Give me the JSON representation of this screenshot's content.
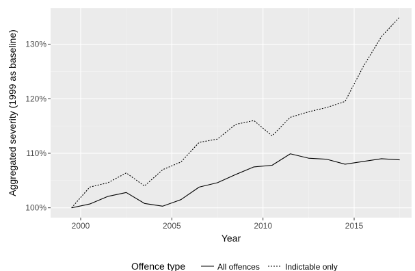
{
  "chart_data": {
    "type": "line",
    "xlabel": "Year",
    "ylabel": "Aggregated severity (1999 as baseline)",
    "x_ticks": [
      2000,
      2005,
      2010,
      2015
    ],
    "x_tick_labels": [
      "2000",
      "2005",
      "2010",
      "2015"
    ],
    "y_ticks": [
      100,
      110,
      120,
      130
    ],
    "y_tick_labels": [
      "100%",
      "110%",
      "120%",
      "130%"
    ],
    "xlim": [
      1998.35,
      2018.15
    ],
    "ylim": [
      98.2,
      136.6
    ],
    "grid": true,
    "legend": {
      "title": "Offence type",
      "position": "bottom"
    },
    "x": [
      1999.5,
      2000.5,
      2001.5,
      2002.5,
      2003.5,
      2004.5,
      2005.5,
      2006.5,
      2007.5,
      2008.5,
      2009.5,
      2010.5,
      2011.5,
      2012.5,
      2013.5,
      2014.5,
      2015.5,
      2016.5,
      2017.5
    ],
    "series": [
      {
        "name": "All offences",
        "dash": "solid",
        "values": [
          100.0,
          100.7,
          102.1,
          102.8,
          100.8,
          100.3,
          101.5,
          103.8,
          104.6,
          106.1,
          107.5,
          107.8,
          109.9,
          109.1,
          108.9,
          108.0,
          108.5,
          109.0,
          108.8
        ]
      },
      {
        "name": "Indictable only",
        "dash": "dotted",
        "values": [
          100.0,
          103.8,
          104.6,
          106.4,
          104.0,
          107.0,
          108.4,
          112.0,
          112.6,
          115.3,
          116.0,
          113.2,
          116.6,
          117.6,
          118.4,
          119.5,
          125.9,
          131.4,
          135.0
        ]
      }
    ]
  }
}
